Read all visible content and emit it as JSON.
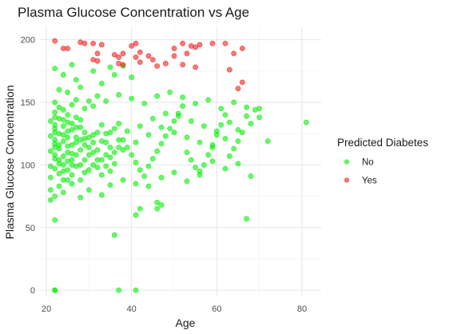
{
  "chart_data": {
    "type": "scatter",
    "title": "Plasma Glucose Concentration vs Age",
    "xlabel": "Age",
    "ylabel": "Plasma Glucose Concentration",
    "xlim": [
      18.5,
      84.5
    ],
    "ylim": [
      -5,
      210
    ],
    "x_ticks": [
      20,
      40,
      60,
      80
    ],
    "y_ticks": [
      0,
      50,
      100,
      150,
      200
    ],
    "grid": true,
    "legend": {
      "title": "Predicted Diabetes",
      "placement": "right",
      "entries": [
        {
          "label": "No",
          "color": "#00ee00"
        },
        {
          "label": "Yes",
          "color": "#ee1a1a"
        }
      ]
    },
    "series": [
      {
        "name": "No",
        "color": "#00ee00",
        "points": [
          [
            22,
            0
          ],
          [
            22,
            0
          ],
          [
            37,
            0
          ],
          [
            41,
            0
          ],
          [
            36,
            44
          ],
          [
            22,
            56
          ],
          [
            67,
            57
          ],
          [
            41,
            60
          ],
          [
            42,
            65
          ],
          [
            46,
            65
          ],
          [
            47,
            68
          ],
          [
            46,
            70
          ],
          [
            21,
            72
          ],
          [
            22,
            75
          ],
          [
            24,
            78
          ],
          [
            21,
            80
          ],
          [
            23,
            83
          ],
          [
            26,
            85
          ],
          [
            25,
            88
          ],
          [
            21,
            90
          ],
          [
            28,
            88
          ],
          [
            33,
            92
          ],
          [
            24,
            95
          ],
          [
            22,
            97
          ],
          [
            21,
            99
          ],
          [
            23,
            101
          ],
          [
            25,
            103
          ],
          [
            27,
            99
          ],
          [
            22,
            105
          ],
          [
            24,
            107
          ],
          [
            26,
            109
          ],
          [
            21,
            111
          ],
          [
            23,
            113
          ],
          [
            28,
            112
          ],
          [
            30,
            108
          ],
          [
            25,
            115
          ],
          [
            22,
            117
          ],
          [
            24,
            119
          ],
          [
            27,
            118
          ],
          [
            29,
            121
          ],
          [
            21,
            123
          ],
          [
            23,
            125
          ],
          [
            25,
            127
          ],
          [
            31,
            124
          ],
          [
            22,
            129
          ],
          [
            24,
            131
          ],
          [
            26,
            133
          ],
          [
            28,
            130
          ],
          [
            21,
            135
          ],
          [
            23,
            137
          ],
          [
            25,
            140
          ],
          [
            27,
            138
          ],
          [
            22,
            142
          ],
          [
            24,
            144
          ],
          [
            29,
            145
          ],
          [
            26,
            148
          ],
          [
            22,
            150
          ],
          [
            30,
            151
          ],
          [
            32,
            155
          ],
          [
            25,
            158
          ],
          [
            23,
            160
          ],
          [
            28,
            162
          ],
          [
            33,
            165
          ],
          [
            27,
            168
          ],
          [
            24,
            172
          ],
          [
            31,
            175
          ],
          [
            22,
            177
          ],
          [
            35,
            178
          ],
          [
            26,
            180
          ],
          [
            38,
            179
          ],
          [
            36,
            172
          ],
          [
            40,
            170
          ],
          [
            29,
            116
          ],
          [
            31,
            110
          ],
          [
            32,
            104
          ],
          [
            34,
            99
          ],
          [
            35,
            95
          ],
          [
            36,
            101
          ],
          [
            33,
            119
          ],
          [
            34,
            125
          ],
          [
            36,
            129
          ],
          [
            37,
            133
          ],
          [
            38,
            120
          ],
          [
            39,
            114
          ],
          [
            40,
            108
          ],
          [
            41,
            102
          ],
          [
            42,
            96
          ],
          [
            43,
            91
          ],
          [
            44,
            99
          ],
          [
            45,
            105
          ],
          [
            46,
            111
          ],
          [
            47,
            117
          ],
          [
            48,
            123
          ],
          [
            49,
            129
          ],
          [
            50,
            135
          ],
          [
            51,
            141
          ],
          [
            52,
            147
          ],
          [
            53,
            110
          ],
          [
            54,
            104
          ],
          [
            55,
            98
          ],
          [
            56,
            92
          ],
          [
            57,
            100
          ],
          [
            58,
            108
          ],
          [
            59,
            116
          ],
          [
            60,
            124
          ],
          [
            61,
            132
          ],
          [
            62,
            140
          ],
          [
            63,
            107
          ],
          [
            64,
            113
          ],
          [
            65,
            119
          ],
          [
            66,
            126
          ],
          [
            67,
            139
          ],
          [
            68,
            91
          ],
          [
            69,
            144
          ],
          [
            70,
            145
          ],
          [
            72,
            119
          ],
          [
            81,
            134
          ],
          [
            30,
            80
          ],
          [
            33,
            76
          ],
          [
            28,
            74
          ],
          [
            35,
            84
          ],
          [
            38,
            88
          ],
          [
            41,
            85
          ],
          [
            44,
            83
          ],
          [
            47,
            90
          ],
          [
            50,
            94
          ],
          [
            53,
            87
          ],
          [
            56,
            95
          ],
          [
            59,
            103
          ],
          [
            62,
            97
          ],
          [
            65,
            101
          ],
          [
            23,
            146
          ],
          [
            27,
            152
          ],
          [
            31,
            147
          ],
          [
            34,
            151
          ],
          [
            37,
            156
          ],
          [
            40,
            153
          ],
          [
            43,
            149
          ],
          [
            46,
            155
          ],
          [
            49,
            158
          ],
          [
            52,
            154
          ],
          [
            55,
            149
          ],
          [
            58,
            152
          ],
          [
            61,
            145
          ],
          [
            64,
            150
          ],
          [
            67,
            146
          ],
          [
            70,
            138
          ],
          [
            29,
            94
          ],
          [
            32,
            98
          ],
          [
            35,
            106
          ],
          [
            38,
            112
          ],
          [
            41,
            118
          ],
          [
            44,
            124
          ],
          [
            47,
            130
          ],
          [
            50,
            126
          ],
          [
            53,
            122
          ],
          [
            56,
            118
          ],
          [
            59,
            114
          ],
          [
            62,
            121
          ],
          [
            65,
            128
          ],
          [
            68,
            133
          ],
          [
            26,
            100
          ],
          [
            30,
            96
          ],
          [
            34,
            108
          ],
          [
            37,
            114
          ],
          [
            39,
            127
          ],
          [
            42,
            131
          ],
          [
            45,
            137
          ],
          [
            48,
            141
          ],
          [
            51,
            139
          ],
          [
            54,
            135
          ],
          [
            57,
            131
          ],
          [
            60,
            127
          ],
          [
            63,
            134
          ],
          [
            22,
            108
          ],
          [
            22,
            114
          ],
          [
            22,
            120
          ],
          [
            22,
            126
          ],
          [
            22,
            132
          ],
          [
            22,
            138
          ],
          [
            23,
            93
          ],
          [
            23,
            104
          ],
          [
            23,
            116
          ],
          [
            24,
            88
          ],
          [
            24,
            100
          ],
          [
            24,
            124
          ],
          [
            24,
            136
          ],
          [
            25,
            96
          ],
          [
            25,
            110
          ],
          [
            25,
            122
          ],
          [
            25,
            134
          ],
          [
            26,
            92
          ],
          [
            26,
            104
          ],
          [
            26,
            116
          ],
          [
            26,
            128
          ],
          [
            27,
            108
          ],
          [
            27,
            122
          ],
          [
            27,
            130
          ],
          [
            28,
            100
          ],
          [
            28,
            120
          ],
          [
            28,
            136
          ],
          [
            29,
            104
          ],
          [
            29,
            126
          ],
          [
            30,
            114
          ],
          [
            30,
            122
          ],
          [
            31,
            100
          ],
          [
            31,
            118
          ],
          [
            32,
            112
          ],
          [
            32,
            126
          ],
          [
            33,
            104
          ],
          [
            33,
            132
          ],
          [
            34,
            118
          ],
          [
            35,
            114
          ],
          [
            35,
            126
          ],
          [
            36,
            110
          ],
          [
            37,
            120
          ]
        ]
      },
      {
        "name": "Yes",
        "color": "#ee1a1a",
        "points": [
          [
            22,
            199
          ],
          [
            24,
            193
          ],
          [
            25,
            193
          ],
          [
            28,
            198
          ],
          [
            29,
            197
          ],
          [
            31,
            197
          ],
          [
            32,
            189
          ],
          [
            33,
            196
          ],
          [
            31,
            184
          ],
          [
            32,
            183
          ],
          [
            36,
            188
          ],
          [
            37,
            186
          ],
          [
            38,
            189
          ],
          [
            37,
            181
          ],
          [
            38,
            180
          ],
          [
            40,
            195
          ],
          [
            41,
            197
          ],
          [
            42,
            190
          ],
          [
            41,
            186
          ],
          [
            42,
            182
          ],
          [
            44,
            187
          ],
          [
            45,
            184
          ],
          [
            46,
            179
          ],
          [
            48,
            181
          ],
          [
            50,
            193
          ],
          [
            52,
            197
          ],
          [
            53,
            189
          ],
          [
            54,
            195
          ],
          [
            55,
            194
          ],
          [
            56,
            196
          ],
          [
            50,
            187
          ],
          [
            52,
            180
          ],
          [
            59,
            197
          ],
          [
            62,
            197
          ],
          [
            64,
            189
          ],
          [
            66,
            193
          ],
          [
            55,
            178
          ],
          [
            63,
            176
          ],
          [
            66,
            166
          ],
          [
            65,
            161
          ]
        ]
      }
    ]
  }
}
